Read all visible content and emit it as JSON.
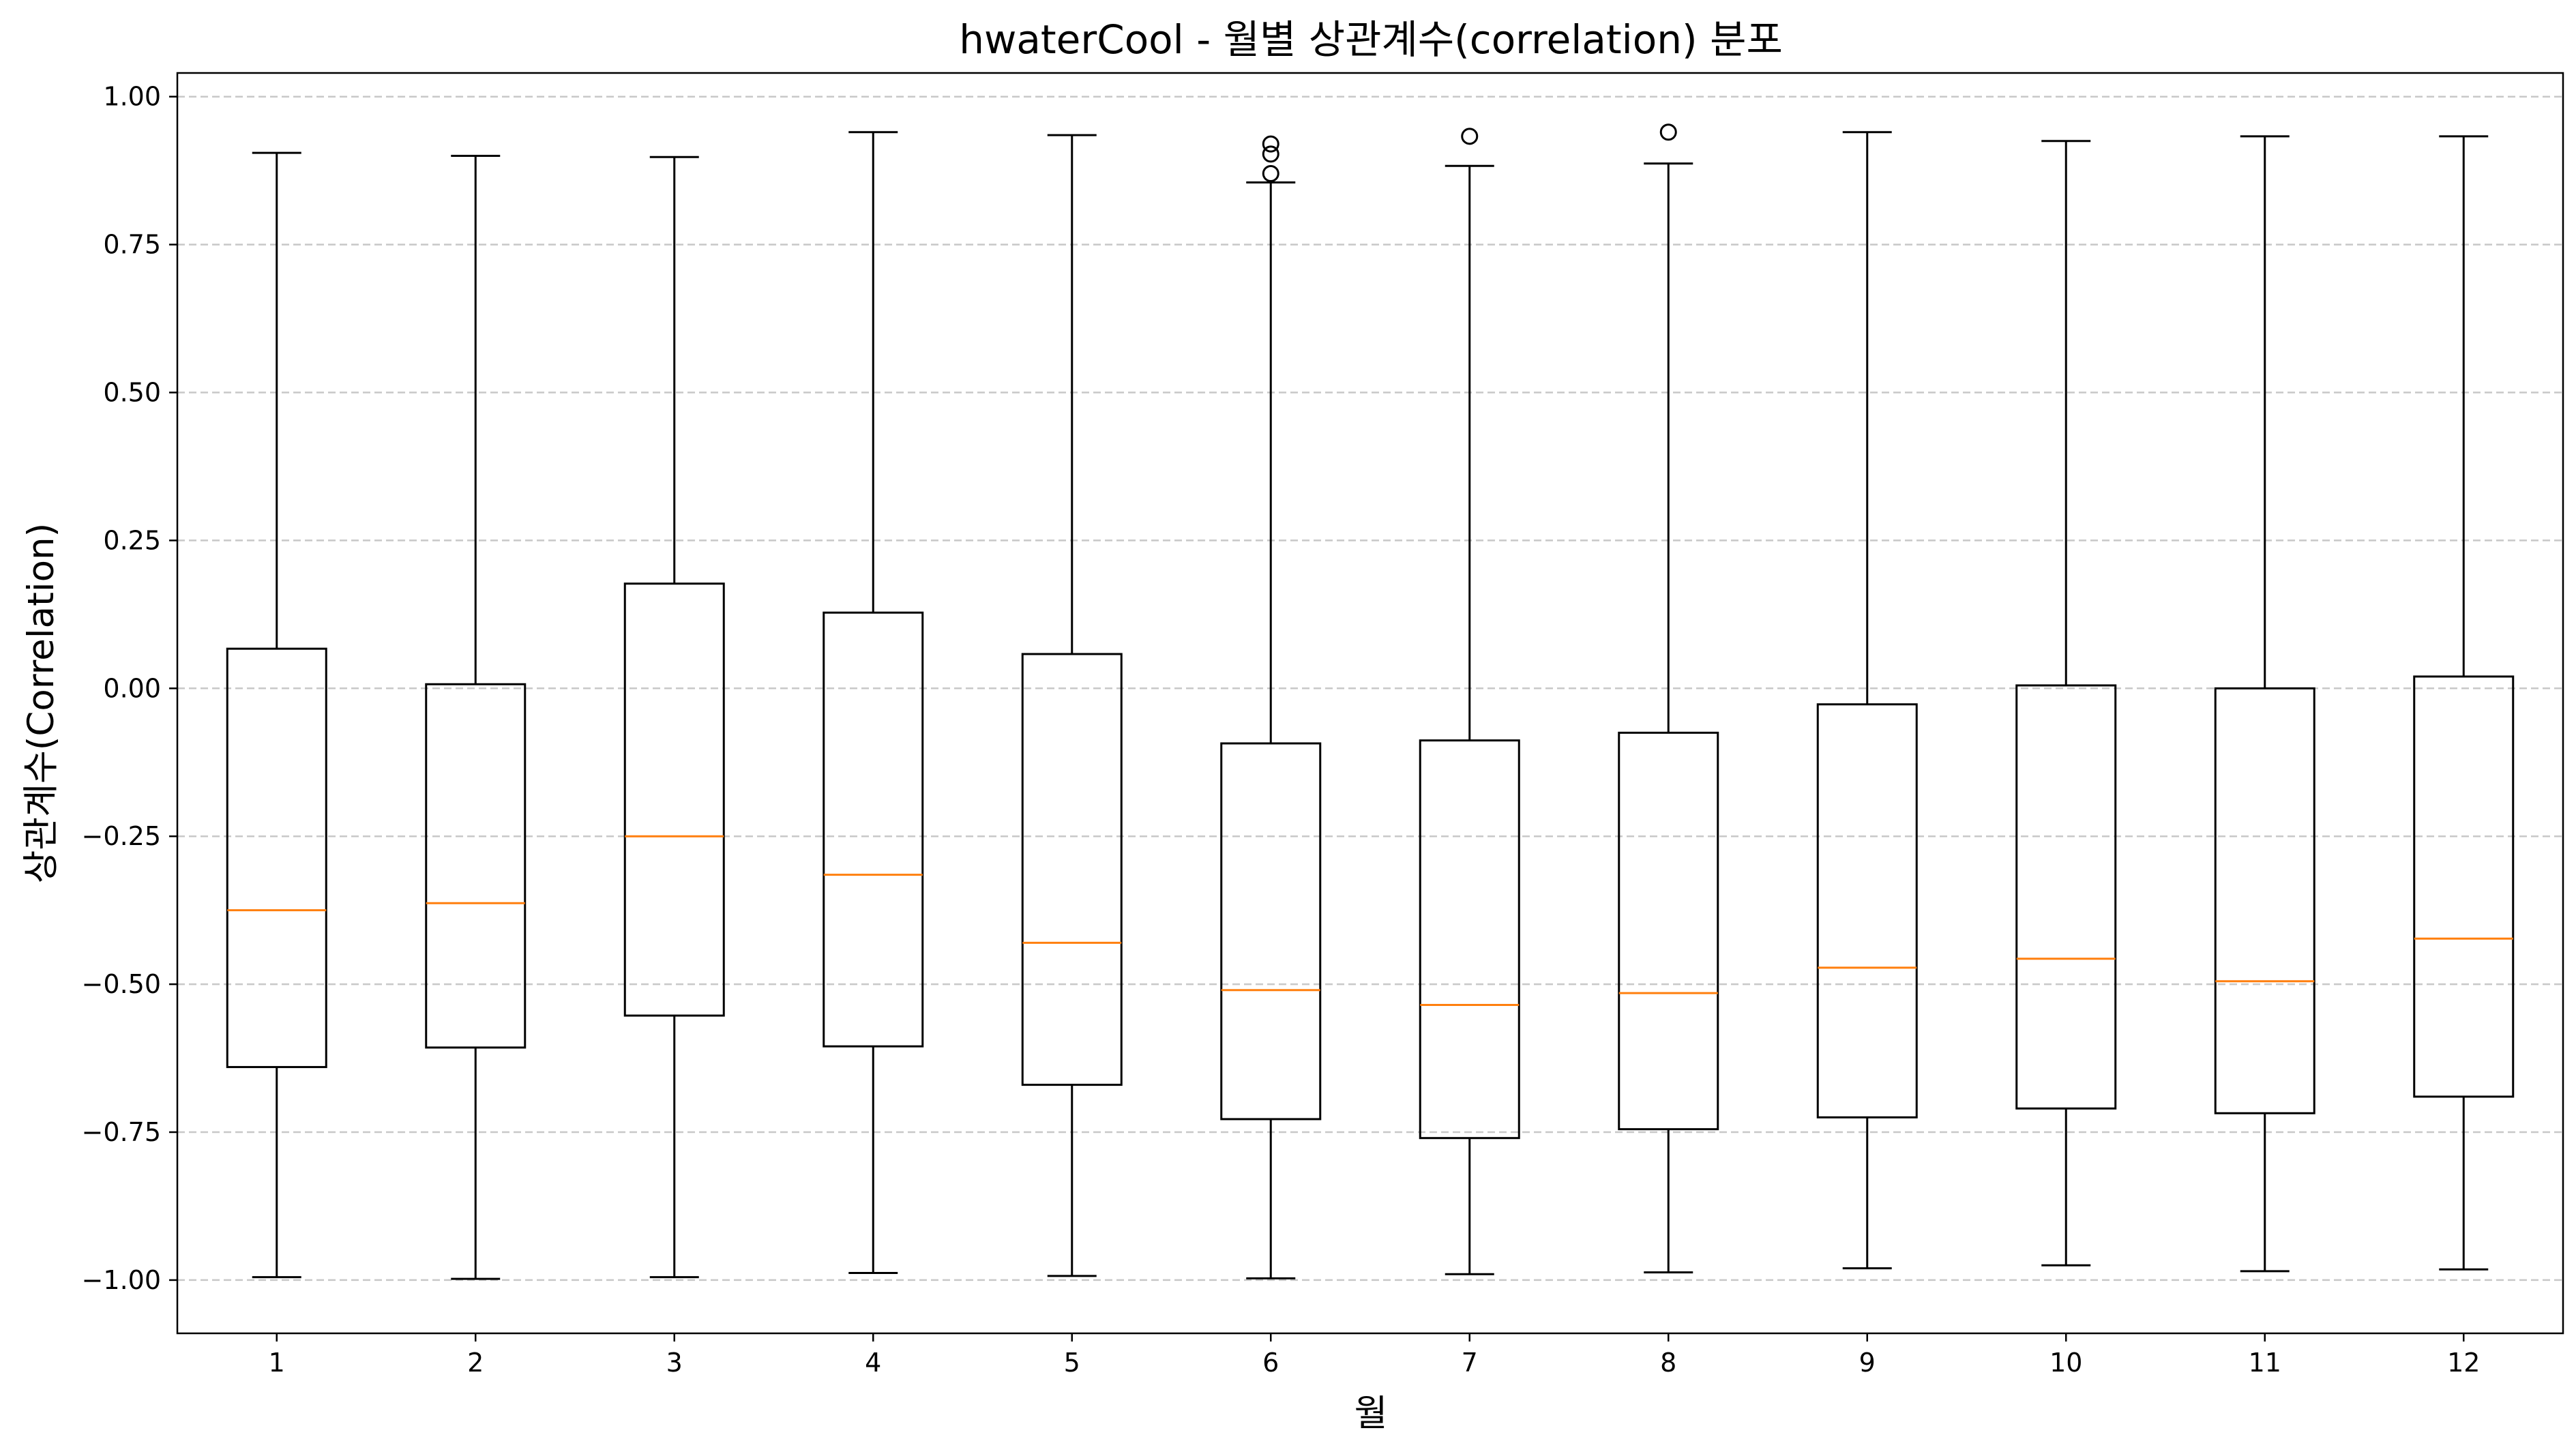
{
  "chart_data": {
    "type": "box",
    "title": "hwaterCool - 월별 상관계수(correlation) 분포",
    "xlabel": "월",
    "ylabel": "상관계수(Correlation)",
    "ylim": [
      -1.09,
      1.04
    ],
    "yticks": [
      1.0,
      0.75,
      0.5,
      0.25,
      0.0,
      -0.25,
      -0.5,
      -0.75,
      -1.0
    ],
    "ytick_labels": [
      "1.00",
      "0.75",
      "0.50",
      "0.25",
      "0.00",
      "−0.25",
      "−0.50",
      "−0.75",
      "−1.00"
    ],
    "grid": "y-dashed",
    "colors": {
      "box": "#000000",
      "median": "#ff7f0e",
      "grid": "#c8c8c8"
    },
    "categories": [
      "1",
      "2",
      "3",
      "4",
      "5",
      "6",
      "7",
      "8",
      "9",
      "10",
      "11",
      "12"
    ],
    "boxes": [
      {
        "whisker_low": -0.995,
        "q1": -0.64,
        "median": -0.375,
        "q3": 0.067,
        "whisker_high": 0.905,
        "outliers": []
      },
      {
        "whisker_low": -0.998,
        "q1": -0.607,
        "median": -0.363,
        "q3": 0.007,
        "whisker_high": 0.9,
        "outliers": []
      },
      {
        "whisker_low": -0.995,
        "q1": -0.553,
        "median": -0.25,
        "q3": 0.177,
        "whisker_high": 0.898,
        "outliers": []
      },
      {
        "whisker_low": -0.988,
        "q1": -0.605,
        "median": -0.315,
        "q3": 0.128,
        "whisker_high": 0.94,
        "outliers": []
      },
      {
        "whisker_low": -0.993,
        "q1": -0.67,
        "median": -0.43,
        "q3": 0.058,
        "whisker_high": 0.935,
        "outliers": []
      },
      {
        "whisker_low": -0.997,
        "q1": -0.728,
        "median": -0.51,
        "q3": -0.093,
        "whisker_high": 0.855,
        "outliers": [
          0.87,
          0.903,
          0.92
        ]
      },
      {
        "whisker_low": -0.99,
        "q1": -0.76,
        "median": -0.535,
        "q3": -0.088,
        "whisker_high": 0.883,
        "outliers": [
          0.933
        ]
      },
      {
        "whisker_low": -0.987,
        "q1": -0.745,
        "median": -0.515,
        "q3": -0.075,
        "whisker_high": 0.887,
        "outliers": [
          0.94
        ]
      },
      {
        "whisker_low": -0.98,
        "q1": -0.725,
        "median": -0.472,
        "q3": -0.027,
        "whisker_high": 0.94,
        "outliers": []
      },
      {
        "whisker_low": -0.975,
        "q1": -0.71,
        "median": -0.457,
        "q3": 0.005,
        "whisker_high": 0.925,
        "outliers": []
      },
      {
        "whisker_low": -0.985,
        "q1": -0.718,
        "median": -0.495,
        "q3": 0.0,
        "whisker_high": 0.933,
        "outliers": []
      },
      {
        "whisker_low": -0.982,
        "q1": -0.69,
        "median": -0.423,
        "q3": 0.02,
        "whisker_high": 0.933,
        "outliers": []
      }
    ]
  }
}
